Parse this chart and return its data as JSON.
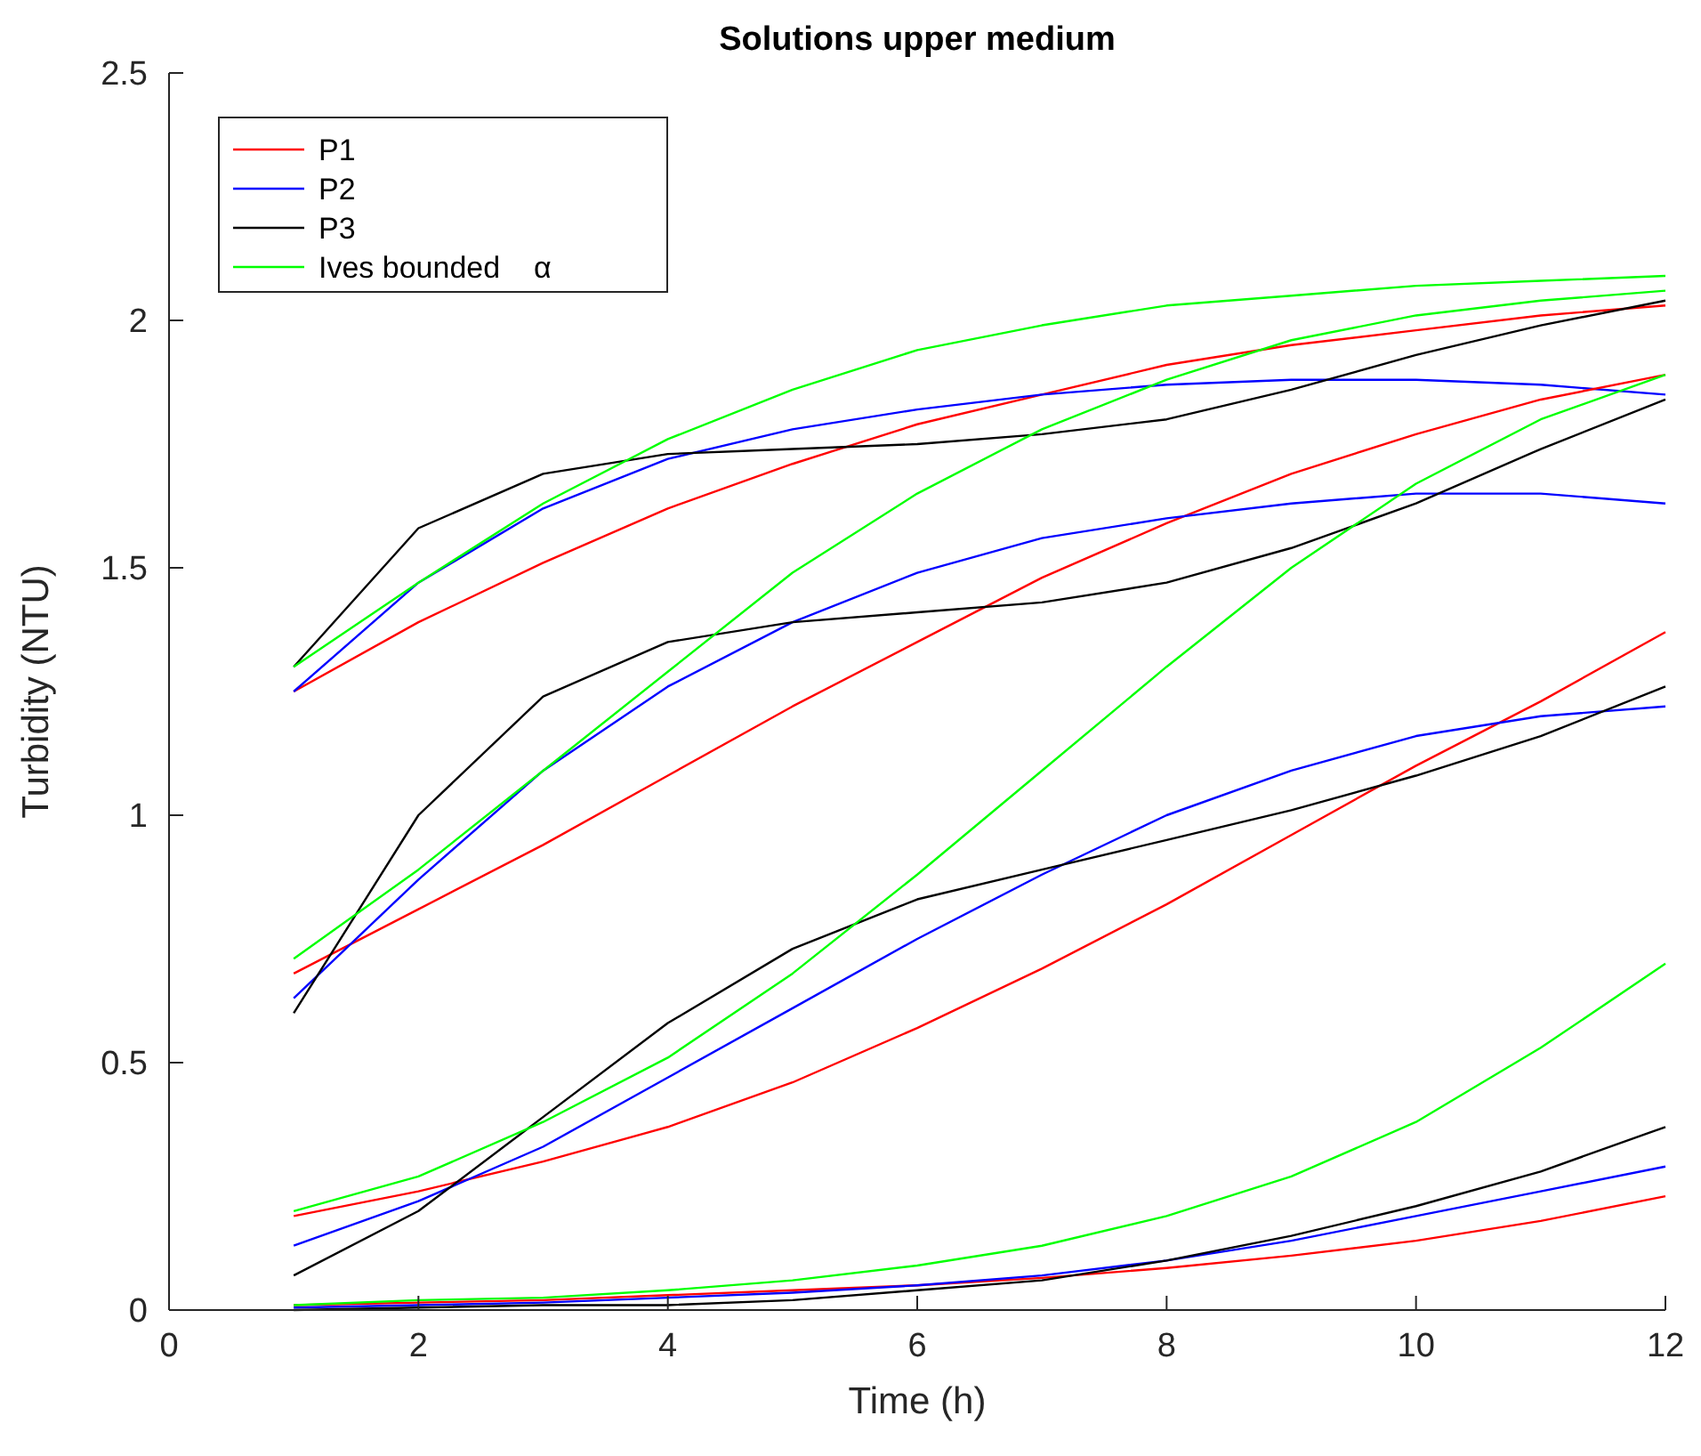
{
  "chart_data": {
    "type": "line",
    "title": "Solutions upper medium",
    "xlabel": "Time (h)",
    "ylabel": "Turbidity (NTU)",
    "x": [
      1,
      2,
      3,
      4,
      5,
      6,
      7,
      8,
      9,
      10,
      11,
      12
    ],
    "xlim": [
      0,
      12
    ],
    "xticks": [
      0,
      2,
      4,
      6,
      8,
      10,
      12
    ],
    "ylim": [
      0,
      2.5
    ],
    "yticks": [
      0,
      0.5,
      1,
      1.5,
      2,
      2.5
    ],
    "grid": false,
    "legend": "top left",
    "marker": "none",
    "line_style": "solid",
    "series": [
      {
        "name": "P1",
        "color": "#ff0000",
        "values": [
          1.25,
          1.39,
          1.51,
          1.62,
          1.71,
          1.79,
          1.85,
          1.91,
          1.95,
          1.98,
          2.01,
          2.03
        ]
      },
      {
        "name": "P2",
        "color": "#0000ff",
        "values": [
          1.25,
          1.47,
          1.62,
          1.72,
          1.78,
          1.82,
          1.85,
          1.87,
          1.88,
          1.88,
          1.87,
          1.85
        ]
      },
      {
        "name": "P3",
        "color": "#000000",
        "values": [
          1.3,
          1.58,
          1.69,
          1.73,
          1.74,
          1.75,
          1.77,
          1.8,
          1.86,
          1.93,
          1.99,
          2.04
        ]
      },
      {
        "name": "Ives bounded    α",
        "color": "#00ff00",
        "values": [
          1.3,
          1.47,
          1.63,
          1.76,
          1.86,
          1.94,
          1.99,
          2.03,
          2.05,
          2.07,
          2.08,
          2.09
        ]
      },
      {
        "color": "#ff0000",
        "values": [
          0.68,
          0.81,
          0.94,
          1.08,
          1.22,
          1.35,
          1.48,
          1.59,
          1.69,
          1.77,
          1.84,
          1.89
        ]
      },
      {
        "color": "#0000ff",
        "values": [
          0.63,
          0.87,
          1.09,
          1.26,
          1.39,
          1.49,
          1.56,
          1.6,
          1.63,
          1.65,
          1.65,
          1.63
        ]
      },
      {
        "color": "#000000",
        "values": [
          0.6,
          1.0,
          1.24,
          1.35,
          1.39,
          1.41,
          1.43,
          1.47,
          1.54,
          1.63,
          1.74,
          1.84
        ]
      },
      {
        "color": "#00ff00",
        "values": [
          0.71,
          0.89,
          1.09,
          1.29,
          1.49,
          1.65,
          1.78,
          1.88,
          1.96,
          2.01,
          2.04,
          2.06
        ]
      },
      {
        "color": "#ff0000",
        "values": [
          0.19,
          0.24,
          0.3,
          0.37,
          0.46,
          0.57,
          0.69,
          0.82,
          0.96,
          1.1,
          1.23,
          1.37
        ]
      },
      {
        "color": "#0000ff",
        "values": [
          0.13,
          0.22,
          0.33,
          0.47,
          0.61,
          0.75,
          0.88,
          1.0,
          1.09,
          1.16,
          1.2,
          1.22
        ]
      },
      {
        "color": "#000000",
        "values": [
          0.07,
          0.2,
          0.39,
          0.58,
          0.73,
          0.83,
          0.89,
          0.95,
          1.01,
          1.08,
          1.16,
          1.26
        ]
      },
      {
        "color": "#00ff00",
        "values": [
          0.2,
          0.27,
          0.38,
          0.51,
          0.68,
          0.88,
          1.09,
          1.3,
          1.5,
          1.67,
          1.8,
          1.89
        ]
      },
      {
        "color": "#ff0000",
        "values": [
          0.01,
          0.015,
          0.02,
          0.03,
          0.04,
          0.05,
          0.065,
          0.085,
          0.11,
          0.14,
          0.18,
          0.23
        ]
      },
      {
        "color": "#0000ff",
        "values": [
          0.005,
          0.01,
          0.015,
          0.025,
          0.035,
          0.05,
          0.07,
          0.1,
          0.14,
          0.19,
          0.24,
          0.29
        ]
      },
      {
        "color": "#000000",
        "values": [
          0,
          0.005,
          0.01,
          0.01,
          0.02,
          0.04,
          0.06,
          0.1,
          0.15,
          0.21,
          0.28,
          0.37
        ]
      },
      {
        "color": "#00ff00",
        "values": [
          0.01,
          0.02,
          0.025,
          0.04,
          0.06,
          0.09,
          0.13,
          0.19,
          0.27,
          0.38,
          0.53,
          0.7
        ]
      }
    ]
  }
}
